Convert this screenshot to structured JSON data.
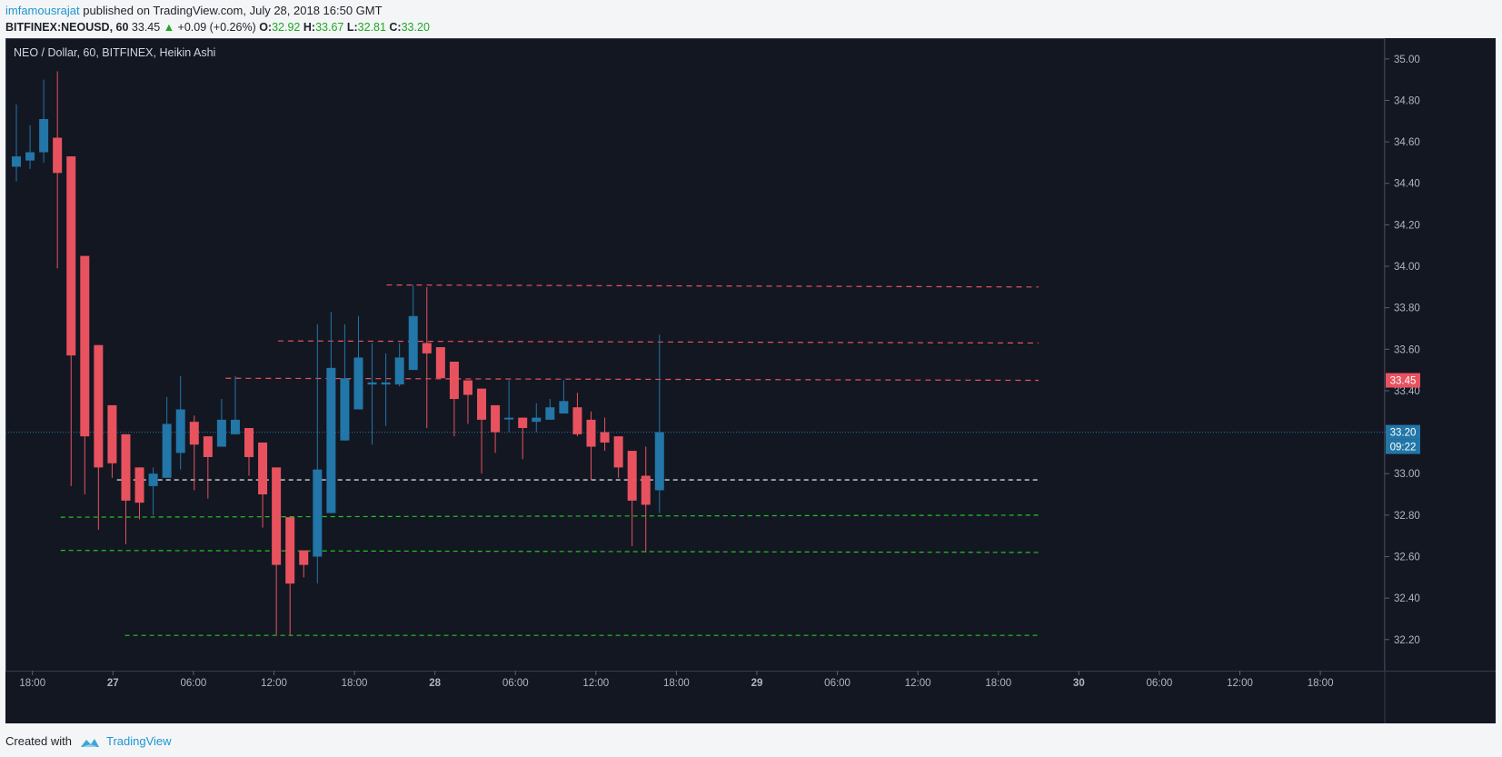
{
  "header": {
    "author": "imfamousrajat",
    "published": "published on TradingView.com, July 28, 2018 16:50 GMT",
    "symbol": "BITFINEX:NEOUSD, 60",
    "last": "33.45",
    "change_arrow": "▲",
    "change": "+0.09 (+0.26%)",
    "o_label": "O:",
    "o_val": "32.92",
    "h_label": "H:",
    "h_val": "33.67",
    "l_label": "L:",
    "l_val": "32.81",
    "c_label": "C:",
    "c_val": "33.20"
  },
  "footer": {
    "created_with": "Created with",
    "brand": "TradingView",
    "brand_icon": "tradingview-cloud-icon"
  },
  "colors": {
    "background": "#131722",
    "up": "#2276a8",
    "down": "#e8525f",
    "axis_text": "#b2b5be",
    "page": "#f3f5f7"
  },
  "chart_data": {
    "type": "candlestick",
    "title": "NEO / Dollar, 60, BITFINEX, Heikin Ashi",
    "ylim": [
      32.05,
      35.1
    ],
    "xlim": [
      0,
      170
    ],
    "y_ticks": [
      "35.00",
      "34.80",
      "34.60",
      "34.40",
      "34.20",
      "34.00",
      "33.80",
      "33.60",
      "33.40",
      "33.20",
      "33.00",
      "32.80",
      "32.60",
      "32.40",
      "32.20"
    ],
    "x_ticks": [
      {
        "x": 2,
        "label": "18:00",
        "bold": false
      },
      {
        "x": 12,
        "label": "27",
        "bold": true
      },
      {
        "x": 22,
        "label": "06:00",
        "bold": false
      },
      {
        "x": 32,
        "label": "12:00",
        "bold": false
      },
      {
        "x": 42,
        "label": "18:00",
        "bold": false
      },
      {
        "x": 52,
        "label": "28",
        "bold": true
      },
      {
        "x": 62,
        "label": "06:00",
        "bold": false
      },
      {
        "x": 72,
        "label": "12:00",
        "bold": false
      },
      {
        "x": 82,
        "label": "18:00",
        "bold": false
      },
      {
        "x": 92,
        "label": "29",
        "bold": true
      },
      {
        "x": 102,
        "label": "06:00",
        "bold": false
      },
      {
        "x": 112,
        "label": "12:00",
        "bold": false
      },
      {
        "x": 122,
        "label": "18:00",
        "bold": false
      },
      {
        "x": 132,
        "label": "30",
        "bold": true
      },
      {
        "x": 142,
        "label": "06:00",
        "bold": false
      },
      {
        "x": 152,
        "label": "12:00",
        "bold": false
      },
      {
        "x": 162,
        "label": "18:00",
        "bold": false
      }
    ],
    "candles": [
      {
        "x": 0,
        "o": 34.48,
        "h": 34.78,
        "l": 34.41,
        "c": 34.53
      },
      {
        "x": 1.7,
        "o": 34.51,
        "h": 34.68,
        "l": 34.47,
        "c": 34.55
      },
      {
        "x": 3.4,
        "o": 34.55,
        "h": 34.9,
        "l": 34.5,
        "c": 34.71
      },
      {
        "x": 5.1,
        "o": 34.62,
        "h": 34.94,
        "l": 33.99,
        "c": 34.45
      },
      {
        "x": 6.8,
        "o": 34.53,
        "h": 34.53,
        "l": 32.94,
        "c": 33.57
      },
      {
        "x": 8.5,
        "o": 34.05,
        "h": 34.05,
        "l": 32.9,
        "c": 33.18
      },
      {
        "x": 10.2,
        "o": 33.62,
        "h": 33.62,
        "l": 32.73,
        "c": 33.03
      },
      {
        "x": 11.9,
        "o": 33.33,
        "h": 33.33,
        "l": 32.98,
        "c": 33.05
      },
      {
        "x": 13.6,
        "o": 33.19,
        "h": 33.19,
        "l": 32.66,
        "c": 32.87
      },
      {
        "x": 15.3,
        "o": 33.03,
        "h": 33.03,
        "l": 32.78,
        "c": 32.86
      },
      {
        "x": 17,
        "o": 32.94,
        "h": 33.03,
        "l": 32.8,
        "c": 33.0
      },
      {
        "x": 18.7,
        "o": 32.98,
        "h": 33.37,
        "l": 32.98,
        "c": 33.24
      },
      {
        "x": 20.4,
        "o": 33.1,
        "h": 33.47,
        "l": 33.02,
        "c": 33.31
      },
      {
        "x": 22.1,
        "o": 33.25,
        "h": 33.28,
        "l": 32.92,
        "c": 33.14
      },
      {
        "x": 23.8,
        "o": 33.18,
        "h": 33.18,
        "l": 32.88,
        "c": 33.08
      },
      {
        "x": 25.5,
        "o": 33.13,
        "h": 33.36,
        "l": 33.13,
        "c": 33.26
      },
      {
        "x": 27.2,
        "o": 33.19,
        "h": 33.47,
        "l": 33.19,
        "c": 33.26
      },
      {
        "x": 28.9,
        "o": 33.22,
        "h": 33.22,
        "l": 32.99,
        "c": 33.08
      },
      {
        "x": 30.6,
        "o": 33.15,
        "h": 33.15,
        "l": 32.74,
        "c": 32.9
      },
      {
        "x": 32.3,
        "o": 33.03,
        "h": 33.03,
        "l": 32.22,
        "c": 32.56
      },
      {
        "x": 34,
        "o": 32.79,
        "h": 32.79,
        "l": 32.22,
        "c": 32.47
      },
      {
        "x": 35.7,
        "o": 32.63,
        "h": 32.63,
        "l": 32.5,
        "c": 32.56
      },
      {
        "x": 37.4,
        "o": 32.6,
        "h": 33.72,
        "l": 32.47,
        "c": 33.02
      },
      {
        "x": 39.1,
        "o": 32.81,
        "h": 33.78,
        "l": 32.81,
        "c": 33.51
      },
      {
        "x": 40.8,
        "o": 33.16,
        "h": 33.72,
        "l": 33.16,
        "c": 33.46
      },
      {
        "x": 42.5,
        "o": 33.31,
        "h": 33.76,
        "l": 33.31,
        "c": 33.56
      },
      {
        "x": 44.2,
        "o": 33.43,
        "h": 33.63,
        "l": 33.14,
        "c": 33.44
      },
      {
        "x": 45.9,
        "o": 33.43,
        "h": 33.58,
        "l": 33.23,
        "c": 33.44
      },
      {
        "x": 47.6,
        "o": 33.43,
        "h": 33.63,
        "l": 33.42,
        "c": 33.56
      },
      {
        "x": 49.3,
        "o": 33.5,
        "h": 33.91,
        "l": 33.5,
        "c": 33.76
      },
      {
        "x": 51,
        "o": 33.63,
        "h": 33.9,
        "l": 33.22,
        "c": 33.58
      },
      {
        "x": 52.7,
        "o": 33.61,
        "h": 33.61,
        "l": 33.47,
        "c": 33.46
      },
      {
        "x": 54.4,
        "o": 33.54,
        "h": 33.54,
        "l": 33.18,
        "c": 33.36
      },
      {
        "x": 56.1,
        "o": 33.45,
        "h": 33.45,
        "l": 33.24,
        "c": 33.38
      },
      {
        "x": 57.8,
        "o": 33.41,
        "h": 33.41,
        "l": 33.0,
        "c": 33.26
      },
      {
        "x": 59.5,
        "o": 33.33,
        "h": 33.33,
        "l": 33.1,
        "c": 33.2
      },
      {
        "x": 61.2,
        "o": 33.27,
        "h": 33.45,
        "l": 33.2,
        "c": 33.27
      },
      {
        "x": 62.9,
        "o": 33.27,
        "h": 33.27,
        "l": 33.07,
        "c": 33.22
      },
      {
        "x": 64.6,
        "o": 33.25,
        "h": 33.34,
        "l": 33.2,
        "c": 33.27
      },
      {
        "x": 66.3,
        "o": 33.26,
        "h": 33.36,
        "l": 33.26,
        "c": 33.32
      },
      {
        "x": 68,
        "o": 33.29,
        "h": 33.45,
        "l": 33.29,
        "c": 33.35
      },
      {
        "x": 69.7,
        "o": 33.32,
        "h": 33.39,
        "l": 33.18,
        "c": 33.19
      },
      {
        "x": 71.4,
        "o": 33.26,
        "h": 33.3,
        "l": 32.97,
        "c": 33.13
      },
      {
        "x": 73.1,
        "o": 33.2,
        "h": 33.27,
        "l": 33.11,
        "c": 33.15
      },
      {
        "x": 74.8,
        "o": 33.18,
        "h": 33.18,
        "l": 32.98,
        "c": 33.03
      },
      {
        "x": 76.5,
        "o": 33.11,
        "h": 33.11,
        "l": 32.65,
        "c": 32.87
      },
      {
        "x": 78.2,
        "o": 32.99,
        "h": 33.13,
        "l": 32.62,
        "c": 32.85
      },
      {
        "x": 79.9,
        "o": 32.92,
        "h": 33.67,
        "l": 32.81,
        "c": 33.2
      }
    ],
    "hlines": [
      {
        "y": 33.91,
        "x1": 46,
        "x2": 127,
        "y2": 33.9,
        "color": "#e8525f",
        "dash": "6,5"
      },
      {
        "y": 33.64,
        "x1": 32.5,
        "x2": 127,
        "y2": 33.63,
        "color": "#e8525f",
        "dash": "6,5"
      },
      {
        "y": 33.46,
        "x1": 26,
        "x2": 127,
        "y2": 33.45,
        "color": "#e8525f",
        "dash": "6,5"
      },
      {
        "y": 32.97,
        "x1": 12.5,
        "x2": 127,
        "y2": 32.97,
        "color": "#ffffff",
        "dash": "5,4"
      },
      {
        "y": 32.79,
        "x1": 5.5,
        "x2": 127,
        "y2": 32.8,
        "color": "#22c522",
        "dash": "5,4"
      },
      {
        "y": 32.63,
        "x1": 5.5,
        "x2": 127,
        "y2": 32.62,
        "color": "#22c522",
        "dash": "5,4"
      },
      {
        "y": 32.22,
        "x1": 13.5,
        "x2": 127,
        "y2": 32.22,
        "color": "#22c522",
        "dash": "5,4"
      }
    ],
    "price_line": {
      "y": 33.2,
      "color": "#2276a8"
    },
    "price_labels": [
      {
        "y": 33.45,
        "text": "33.45",
        "bg": "#e8525f"
      },
      {
        "y": 33.2,
        "text": "33.20",
        "bg": "#2276a8"
      },
      {
        "y": 33.13,
        "text": "09:22",
        "bg": "#2276a8"
      }
    ]
  }
}
